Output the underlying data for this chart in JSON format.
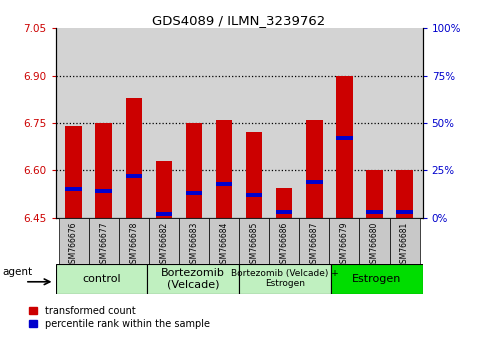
{
  "title": "GDS4089 / ILMN_3239762",
  "samples": [
    "GSM766676",
    "GSM766677",
    "GSM766678",
    "GSM766682",
    "GSM766683",
    "GSM766684",
    "GSM766685",
    "GSM766686",
    "GSM766687",
    "GSM766679",
    "GSM766680",
    "GSM766681"
  ],
  "red_values": [
    6.74,
    6.75,
    6.83,
    6.63,
    6.75,
    6.76,
    6.72,
    6.545,
    6.76,
    6.9,
    6.6,
    6.6
  ],
  "blue_values_pct": [
    15,
    14,
    22,
    2,
    13,
    18,
    12,
    3,
    19,
    42,
    3,
    3
  ],
  "y_min": 6.45,
  "y_max": 7.05,
  "y_ticks_left": [
    6.45,
    6.6,
    6.75,
    6.9,
    7.05
  ],
  "y_ticks_right_pct": [
    0,
    25,
    50,
    75,
    100
  ],
  "dotted_lines": [
    6.6,
    6.75,
    6.9
  ],
  "groups": [
    {
      "label": "control",
      "start": 0,
      "end": 3,
      "color": "#c0f0c0"
    },
    {
      "label": "Bortezomib\n(Velcade)",
      "start": 3,
      "end": 6,
      "color": "#c0f0c0"
    },
    {
      "label": "Bortezomib (Velcade) +\nEstrogen",
      "start": 6,
      "end": 9,
      "color": "#c0f0c0"
    },
    {
      "label": "Estrogen",
      "start": 9,
      "end": 12,
      "color": "#00dd00"
    }
  ],
  "bar_color": "#cc0000",
  "blue_marker_color": "#0000cc",
  "bar_width": 0.55,
  "plot_bg_color": "#d3d3d3",
  "left_tick_color": "#cc0000",
  "right_tick_color": "#0000cc"
}
